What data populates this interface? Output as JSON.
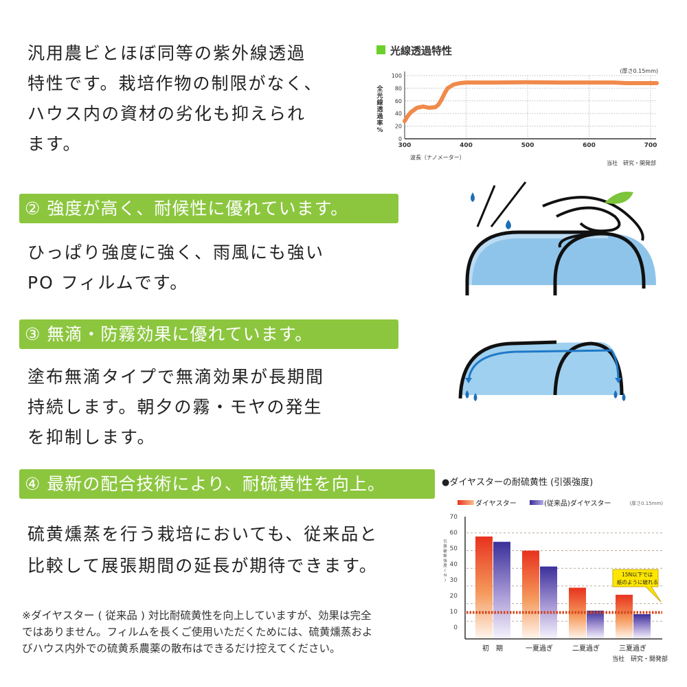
{
  "section1": {
    "lines": [
      "汎用農ビとほぼ同等の紫外線透過",
      "特性です。栽培作物の制限がなく、",
      "ハウス内の資材の劣化も抑えられ",
      "ます。"
    ]
  },
  "section2": {
    "heading": "② 強度が高く、耐候性に優れています。",
    "lines": [
      "ひっぱり強度に強く、雨風にも強い",
      "PO フィルムです。"
    ]
  },
  "section3": {
    "heading": "③ 無滴・防霧効果に優れています。",
    "lines": [
      "塗布無滴タイプで無滴効果が長期間",
      "持続します。朝夕の霧・モヤの発生",
      "を抑制します。"
    ]
  },
  "section4": {
    "heading": "④ 最新の配合技術により、耐硫黄性を向上。",
    "lines": [
      "硫黄燻蒸を行う栽培においても、従来品と",
      "比較して展張期間の延長が期待できます。"
    ]
  },
  "note": {
    "lines": [
      "※ダイヤスター ( 従来品 ) 対比耐硫黄性を向上していますが、効果は完全",
      "ではありません。フィルムを長くご使用いただくためには、硫黄燻蒸およ",
      "びハウス内外での硫黄系農薬の散布はできるだけ控えてください。"
    ]
  },
  "colors": {
    "accent": "#8cc63f",
    "line": "#f08a4b",
    "red": "#e8321e",
    "blue": "#3a2f9a"
  },
  "chart_data": [
    {
      "type": "line",
      "title": "光線透過特性",
      "note": "(厚さ0.15mm)",
      "xlabel": "波長（ナノメーター）",
      "ylabel": "全光線透過率%",
      "source": "当社　研究・開発部",
      "xlim": [
        300,
        710
      ],
      "ylim": [
        0,
        100
      ],
      "xticks": [
        300,
        400,
        500,
        600,
        700
      ],
      "yticks": [
        0,
        20,
        40,
        60,
        80,
        100
      ],
      "grid": true,
      "x": [
        300,
        305,
        310,
        320,
        330,
        340,
        350,
        355,
        360,
        365,
        370,
        380,
        390,
        400,
        450,
        500,
        550,
        600,
        640,
        660,
        700,
        710
      ],
      "y": [
        28,
        36,
        42,
        49,
        51,
        49,
        50,
        54,
        62,
        72,
        80,
        86,
        88,
        89,
        89,
        89.5,
        89,
        89,
        89,
        88,
        88,
        88
      ]
    },
    {
      "type": "bar",
      "title": "●ダイヤスターの耐硫黄性 (引張強度)",
      "note": "(厚さ0.15mm)",
      "ylabel": "引張破断強度(N)",
      "source": "当社　研究・開発部",
      "categories": [
        "初　期",
        "一夏過ぎ",
        "二夏過ぎ",
        "三夏過ぎ"
      ],
      "series": [
        {
          "name": "ダイヤスター",
          "values": [
            58,
            50,
            29,
            25
          ]
        },
        {
          "name": "(従来品)ダイヤスター",
          "values": [
            55,
            41,
            16,
            14
          ]
        }
      ],
      "ytick_labels": [
        "70",
        "60",
        "50",
        "40",
        "30",
        "20",
        "10",
        "0"
      ],
      "ylim": [
        0,
        70
      ],
      "threshold": 15,
      "callout": [
        "15N以下では",
        "紙のように破れる"
      ]
    }
  ]
}
